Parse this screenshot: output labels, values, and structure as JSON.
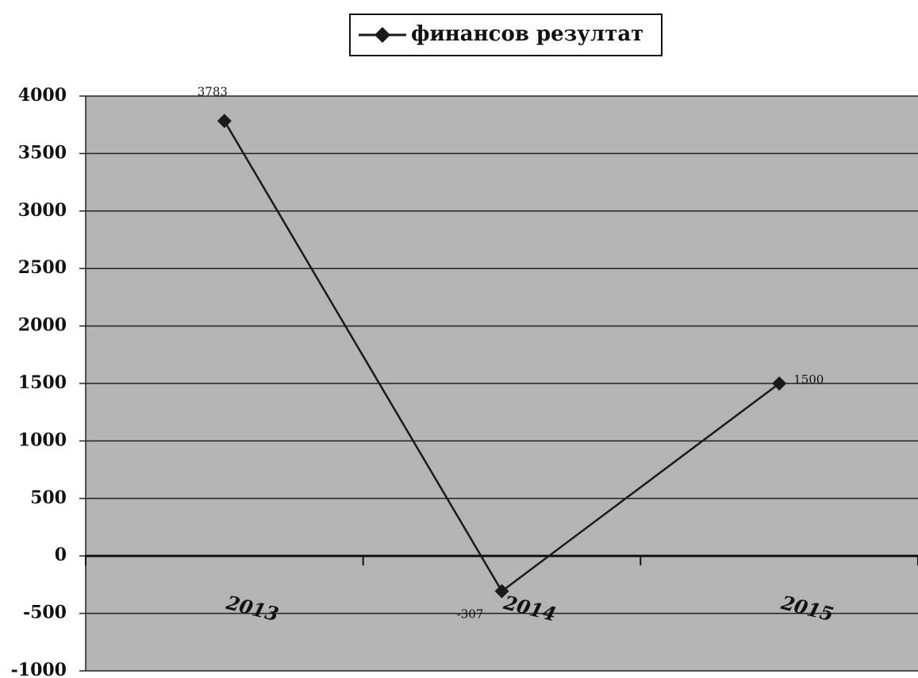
{
  "chart_data": {
    "type": "line",
    "categories": [
      "2013",
      "2014",
      "2015"
    ],
    "series": [
      {
        "name": "финансов резултат",
        "color": "#1a1a1a",
        "values": [
          3783,
          -307,
          1500
        ]
      }
    ],
    "ylim": [
      -1000,
      4000
    ],
    "yticks": [
      -1000,
      -500,
      0,
      500,
      1000,
      1500,
      2000,
      2500,
      3000,
      3500,
      4000
    ],
    "grid": true,
    "legend": "top",
    "data_labels": true
  }
}
